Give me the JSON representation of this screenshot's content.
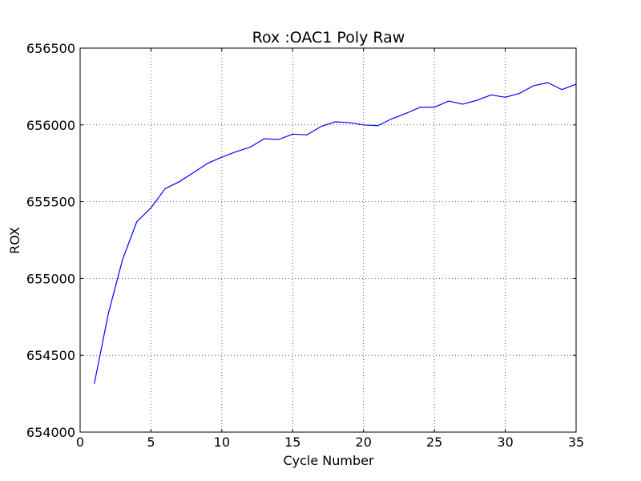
{
  "chart_data": {
    "type": "line",
    "title": "Rox :OAC1 Poly Raw",
    "xlabel": "Cycle Number",
    "ylabel": "ROX",
    "xlim": [
      0,
      35
    ],
    "ylim": [
      654000,
      656500
    ],
    "xticks": [
      0,
      5,
      10,
      15,
      20,
      25,
      30,
      35
    ],
    "yticks": [
      654000,
      654500,
      655000,
      655500,
      656000,
      656500
    ],
    "grid": true,
    "line_color": "#0000ff",
    "series": [
      {
        "x": [
          1,
          2,
          3,
          4,
          5,
          6,
          7,
          8,
          9,
          10,
          11,
          12,
          13,
          14,
          15,
          16,
          17,
          18,
          19,
          20,
          21,
          22,
          23,
          24,
          25,
          26,
          27,
          28,
          29,
          30,
          31,
          32,
          33,
          34,
          35
        ],
        "y": [
          654315,
          654775,
          655125,
          655370,
          655460,
          655585,
          655630,
          655690,
          655750,
          655790,
          655825,
          655855,
          655910,
          655905,
          655940,
          655935,
          655990,
          656020,
          656015,
          656000,
          655995,
          656040,
          656075,
          656115,
          656115,
          656155,
          656135,
          656160,
          656195,
          656180,
          656205,
          656255,
          656275,
          656230,
          656265
        ]
      }
    ]
  }
}
